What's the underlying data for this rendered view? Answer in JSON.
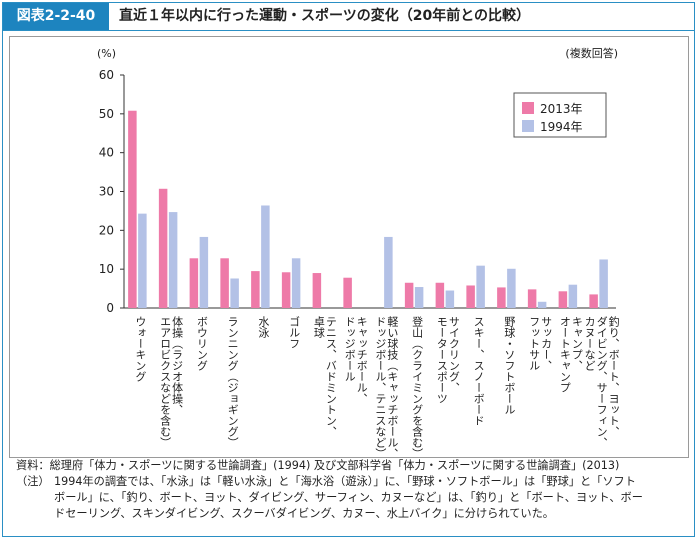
{
  "header": {
    "figure_label": "図表2-2-40",
    "title": "直近１年以内に行った運動・スポーツの変化（20年前との比較）"
  },
  "notes": {
    "source_label": "資料：",
    "source_text": "総理府「体力・スポーツに関する世論調査」(1994) 及び文部科学省「体力・スポーツに関する世論調査」(2013)",
    "note_label": "（注）",
    "note_lines": [
      "1994年の調査では、「水泳」は「軽い水泳」と「海水浴（遊泳）」に、「野球・ソフトボール」は「野球」と「ソフト",
      "ボール」に、「釣り、ボート、ヨット、ダイビング、サーフィン、カヌーなど」は、「釣り」と「ボート、ヨット、ボー",
      "ドセーリング、スキンダイビング、スクーバダイビング、カヌー、水上バイク」に分けられていた。"
    ]
  },
  "chart_data": {
    "type": "bar",
    "ylabel": "(%)",
    "annotation": "(複数回答)",
    "ylim": [
      0,
      60
    ],
    "yticks": [
      "0",
      "10",
      "20",
      "30",
      "40",
      "50",
      "60"
    ],
    "categories": [
      "ウォーキング",
      "体操（ラジオ体操、エアロビクスなどを含む）",
      "ボウリング",
      "ランニング（ジョギング）",
      "水泳",
      "ゴルフ",
      "テニス、バドミントン、卓球",
      "キャッチボール、ドッジボール",
      "軽い球技（キャッチボール、ドッジボール、テニスなど）",
      "登山（クライミングを含む）",
      "サイクリング、モータースポーツ",
      "スキー、スノーボード",
      "野球・ソフトボール",
      "サッカー、フットサル",
      "キャンプ、オートキャンプ",
      "釣り、ボート、ヨット、ダイビング、サーフィン、カヌーなど"
    ],
    "category_lines": [
      [
        "ウォーキング"
      ],
      [
        "体操（ラジオ体操、",
        "エアロビクスなどを含む）"
      ],
      [
        "ボウリング"
      ],
      [
        "ランニング（ジョギング）"
      ],
      [
        "水泳"
      ],
      [
        "ゴルフ"
      ],
      [
        "テニス、バドミントン、",
        "卓球"
      ],
      [
        "キャッチボール、",
        "ドッジボール"
      ],
      [
        "軽い球技（キャッチボール、",
        "ドッジボール、テニスなど）"
      ],
      [
        "登山（クライミングを含む）"
      ],
      [
        "サイクリング、",
        "モータースポーツ"
      ],
      [
        "スキー、スノーボード"
      ],
      [
        "野球・ソフトボール"
      ],
      [
        "サッカー、",
        "フットサル"
      ],
      [
        "キャンプ、",
        "オートキャンプ"
      ],
      [
        "釣り、ボート、ヨット、",
        "ダイビング、サーフィン、",
        "カヌーなど"
      ]
    ],
    "series": [
      {
        "name": "2013年",
        "color": "#ee7aa8",
        "values": [
          50.8,
          30.7,
          12.8,
          12.8,
          9.5,
          9.2,
          9.0,
          7.8,
          null,
          6.5,
          6.5,
          5.8,
          5.3,
          4.8,
          4.3,
          3.5
        ]
      },
      {
        "name": "1994年",
        "color": "#b3c1e6",
        "values": [
          24.3,
          24.7,
          18.3,
          7.6,
          26.4,
          12.8,
          null,
          null,
          18.3,
          5.4,
          4.5,
          10.9,
          10.1,
          1.6,
          6.0,
          12.5
        ]
      }
    ],
    "legend_position": "top-right",
    "grid": false
  }
}
